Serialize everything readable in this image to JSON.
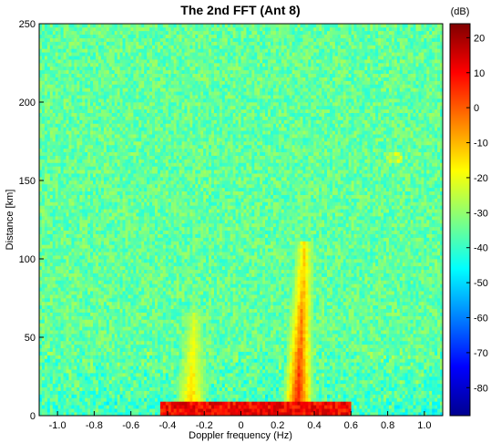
{
  "chart_data": {
    "type": "heatmap",
    "title": "The 2nd FFT (Ant 8)",
    "xlabel": "Doppler frequency (Hz)",
    "ylabel": "Distance [km]",
    "xlim": [
      -1.1,
      1.1
    ],
    "ylim": [
      0,
      250
    ],
    "x_ticks": [
      "-1.0",
      "-0.8",
      "-0.6",
      "-0.4",
      "-0.2",
      "0",
      "0.2",
      "0.4",
      "0.6",
      "0.8",
      "1.0"
    ],
    "x_tick_values": [
      -1.0,
      -0.8,
      -0.6,
      -0.4,
      -0.2,
      0,
      0.2,
      0.4,
      0.6,
      0.8,
      1.0
    ],
    "y_ticks": [
      "0",
      "50",
      "100",
      "150",
      "200",
      "250"
    ],
    "y_tick_values": [
      0,
      50,
      100,
      150,
      200,
      250
    ],
    "background_level_db": -35,
    "colorbar": {
      "label": "(dB)",
      "range": [
        -88,
        24
      ],
      "ticks": [
        "20",
        "10",
        "0",
        "-10",
        "-20",
        "-30",
        "-40",
        "-50",
        "-60",
        "-70",
        "-80"
      ],
      "tick_values": [
        20,
        10,
        0,
        -10,
        -20,
        -30,
        -40,
        -50,
        -60,
        -70,
        -80
      ],
      "colormap": [
        "#00008f",
        "#0000ff",
        "#0080ff",
        "#00ffff",
        "#80ff80",
        "#ffff00",
        "#ff8000",
        "#ff0000",
        "#800000"
      ]
    },
    "features": [
      {
        "name": "Bragg peak (positive)",
        "x_center_hz": 0.3,
        "distance_extent_km": [
          0,
          110
        ],
        "peak_db": 10
      },
      {
        "name": "Bragg peak (negative)",
        "x_center_hz": -0.28,
        "distance_extent_km": [
          0,
          65
        ],
        "peak_db": -10
      },
      {
        "name": "Near-range band",
        "x_extent_hz": [
          -0.45,
          0.6
        ],
        "distance_extent_km": [
          0,
          8
        ],
        "peak_db": 15
      },
      {
        "name": "Far-range echo",
        "x_extent_hz": [
          0.78,
          0.88
        ],
        "distance_extent_km": [
          160,
          166
        ],
        "peak_db": -20
      }
    ]
  }
}
